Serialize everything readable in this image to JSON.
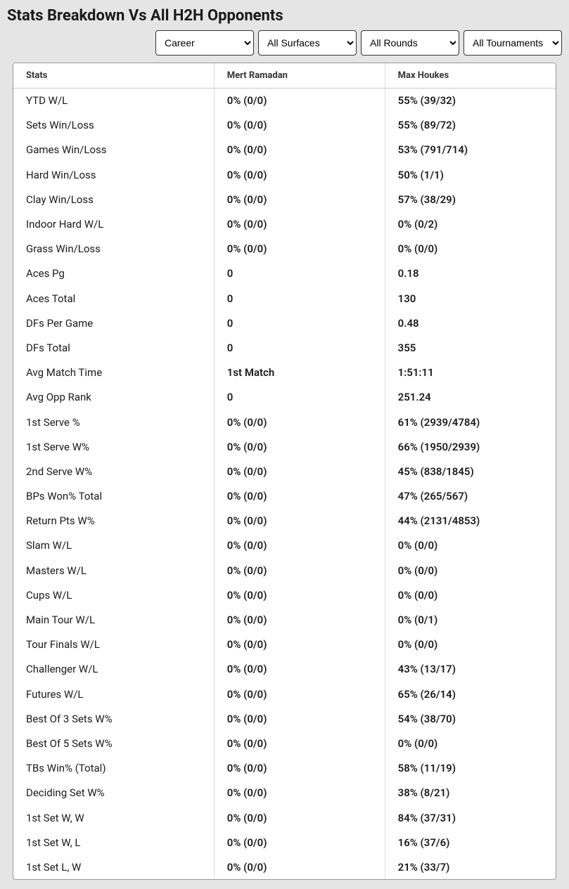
{
  "title": "Stats Breakdown Vs All H2H Opponents",
  "filters": {
    "career": "Career",
    "surfaces": "All Surfaces",
    "rounds": "All Rounds",
    "tournaments": "All Tournaments"
  },
  "table": {
    "columns": [
      "Stats",
      "Mert Ramadan",
      "Max Houkes"
    ],
    "rows": [
      [
        "YTD W/L",
        "0% (0/0)",
        "55% (39/32)"
      ],
      [
        "Sets Win/Loss",
        "0% (0/0)",
        "55% (89/72)"
      ],
      [
        "Games Win/Loss",
        "0% (0/0)",
        "53% (791/714)"
      ],
      [
        "Hard Win/Loss",
        "0% (0/0)",
        "50% (1/1)"
      ],
      [
        "Clay Win/Loss",
        "0% (0/0)",
        "57% (38/29)"
      ],
      [
        "Indoor Hard W/L",
        "0% (0/0)",
        "0% (0/2)"
      ],
      [
        "Grass Win/Loss",
        "0% (0/0)",
        "0% (0/0)"
      ],
      [
        "Aces Pg",
        "0",
        "0.18"
      ],
      [
        "Aces Total",
        "0",
        "130"
      ],
      [
        "DFs Per Game",
        "0",
        "0.48"
      ],
      [
        "DFs Total",
        "0",
        "355"
      ],
      [
        "Avg Match Time",
        "1st Match",
        "1:51:11"
      ],
      [
        "Avg Opp Rank",
        "0",
        "251.24"
      ],
      [
        "1st Serve %",
        "0% (0/0)",
        "61% (2939/4784)"
      ],
      [
        "1st Serve W%",
        "0% (0/0)",
        "66% (1950/2939)"
      ],
      [
        "2nd Serve W%",
        "0% (0/0)",
        "45% (838/1845)"
      ],
      [
        "BPs Won% Total",
        "0% (0/0)",
        "47% (265/567)"
      ],
      [
        "Return Pts W%",
        "0% (0/0)",
        "44% (2131/4853)"
      ],
      [
        "Slam W/L",
        "0% (0/0)",
        "0% (0/0)"
      ],
      [
        "Masters W/L",
        "0% (0/0)",
        "0% (0/0)"
      ],
      [
        "Cups W/L",
        "0% (0/0)",
        "0% (0/0)"
      ],
      [
        "Main Tour W/L",
        "0% (0/0)",
        "0% (0/1)"
      ],
      [
        "Tour Finals W/L",
        "0% (0/0)",
        "0% (0/0)"
      ],
      [
        "Challenger W/L",
        "0% (0/0)",
        "43% (13/17)"
      ],
      [
        "Futures W/L",
        "0% (0/0)",
        "65% (26/14)"
      ],
      [
        "Best Of 3 Sets W%",
        "0% (0/0)",
        "54% (38/70)"
      ],
      [
        "Best Of 5 Sets W%",
        "0% (0/0)",
        "0% (0/0)"
      ],
      [
        "TBs Win% (Total)",
        "0% (0/0)",
        "58% (11/19)"
      ],
      [
        "Deciding Set W%",
        "0% (0/0)",
        "38% (8/21)"
      ],
      [
        "1st Set W, W",
        "0% (0/0)",
        "84% (37/31)"
      ],
      [
        "1st Set W, L",
        "0% (0/0)",
        "16% (37/6)"
      ],
      [
        "1st Set L, W",
        "0% (0/0)",
        "21% (33/7)"
      ]
    ]
  }
}
